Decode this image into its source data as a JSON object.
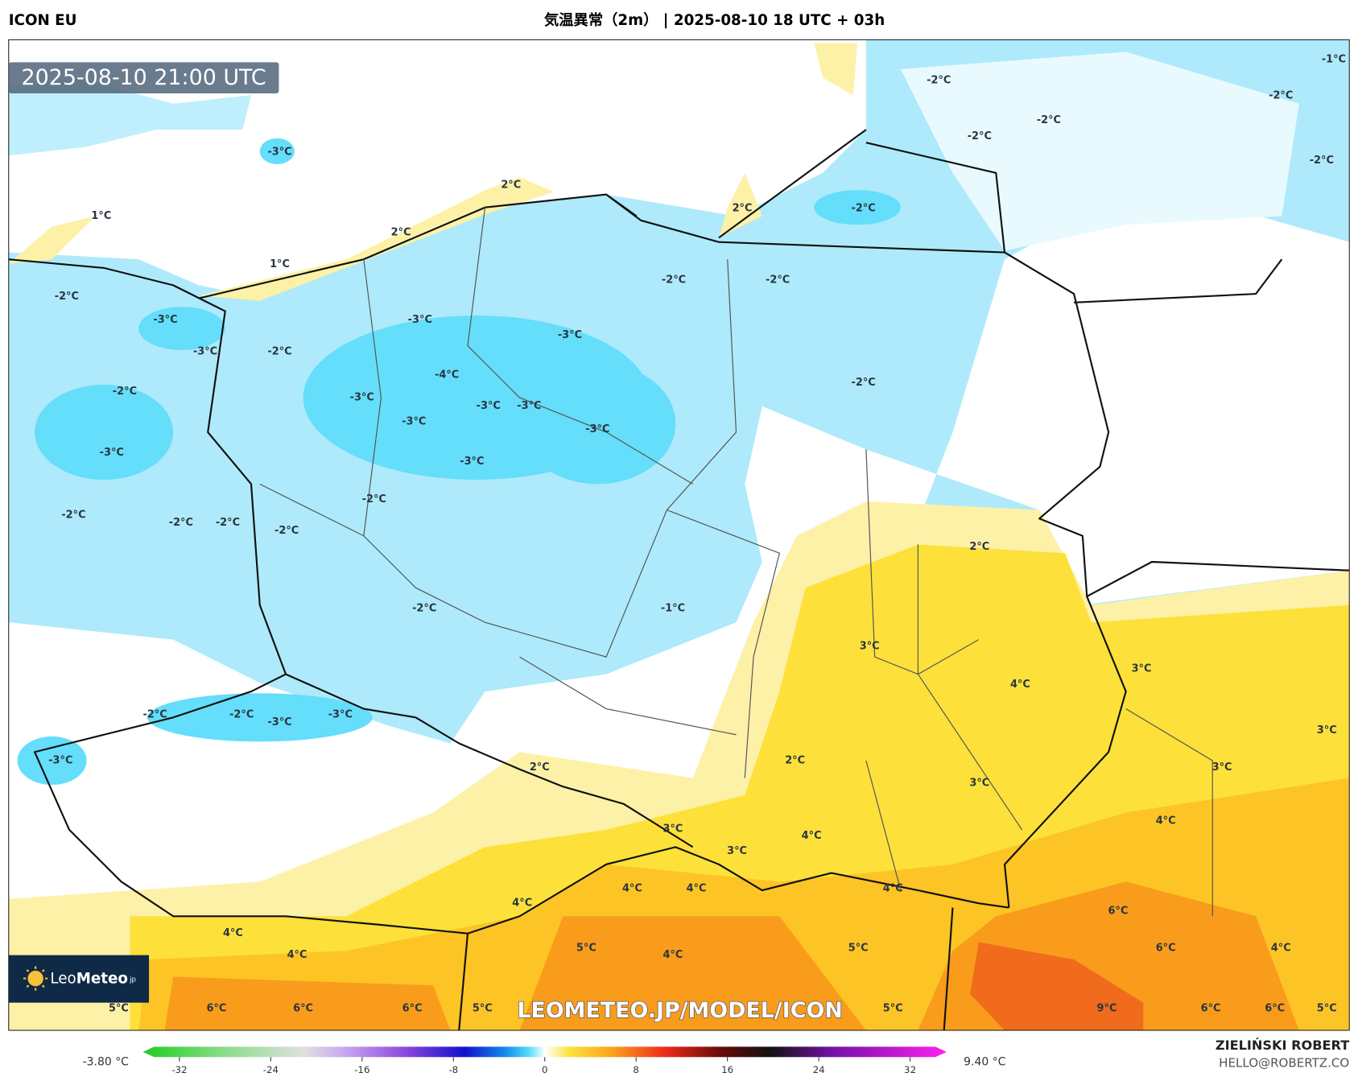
{
  "header": {
    "model": "ICON EU",
    "title": "気温異常（2m） | 2025-08-10 18 UTC + 03h"
  },
  "map": {
    "valid_time": "2025-08-10 21:00 UTC",
    "watermark": "LEOMETEO.JP/MODEL/ICON",
    "logo": {
      "name": "Leo",
      "name_bold": "Meteo",
      "suffix": "jp"
    },
    "contour_labels": [
      "1°C",
      "1°C",
      "2°C",
      "2°C",
      "2°C",
      "-3°C",
      "-2°C",
      "-3°C",
      "-3°C",
      "-2°C",
      "-2°C",
      "-3°C",
      "-3°C",
      "-4°C",
      "-3°C",
      "-3°C",
      "-3°C",
      "-3°C",
      "-3°C",
      "-3°C",
      "-3°C",
      "-2°C",
      "-2°C",
      "-2°C",
      "-2°C",
      "-2°C",
      "-2°C",
      "-1°C",
      "-2°C",
      "-2°C",
      "-2°C",
      "-2°C",
      "-2°C",
      "-2°C",
      "-2°C",
      "-2°C",
      "-2°C",
      "-1°C",
      "-2°C",
      "-2°C",
      "-3°C",
      "-3°C",
      "-3°C",
      "2°C",
      "3°C",
      "4°C",
      "3°C",
      "3°C",
      "3°C",
      "2°C",
      "2°C",
      "3°C",
      "4°C",
      "3°C",
      "4°C",
      "3°C",
      "4°C",
      "4°C",
      "4°C",
      "4°C",
      "4°C",
      "6°C",
      "4°C",
      "5°C",
      "4°C",
      "5°C",
      "6°C",
      "4°C",
      "5°C",
      "6°C",
      "6°C",
      "6°C",
      "5°C",
      "5°C",
      "9°C",
      "6°C",
      "6°C",
      "5°C"
    ]
  },
  "colorbar": {
    "min_label": "-3.80 °C",
    "max_label": "9.40 °C",
    "lim": [
      -35.2,
      35.2
    ],
    "ticks": [
      -32,
      -24,
      -16,
      -8,
      0,
      8,
      16,
      24,
      32
    ]
  },
  "credits": {
    "author": "ZIELIŃSKI ROBERT",
    "contact": "HELLO@ROBERTZ.CO"
  }
}
